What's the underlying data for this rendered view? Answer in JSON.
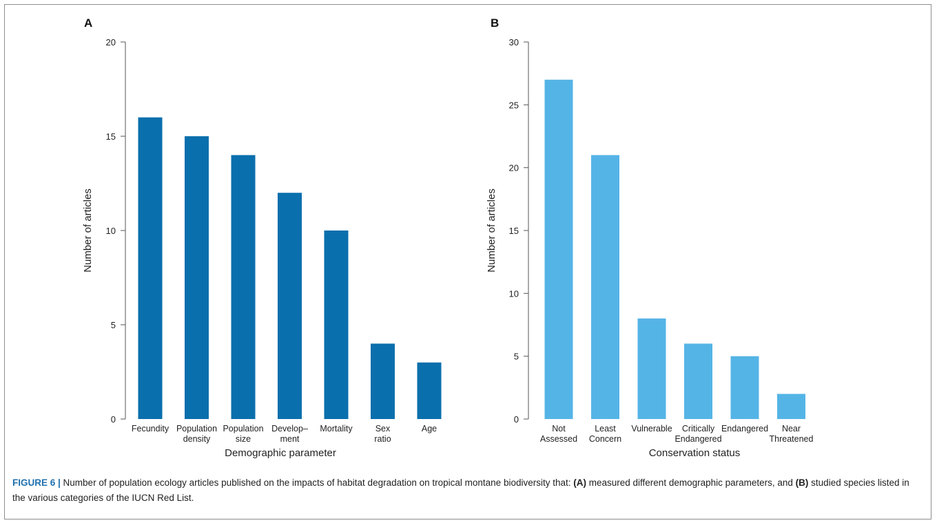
{
  "figure": {
    "caption_label": "FIGURE 6 |",
    "caption_part1": " Number of population ecology articles published on the impacts of habitat degradation on tropical montane biodiversity that: ",
    "caption_a": "(A)",
    "caption_part2": " measured different demographic parameters, and ",
    "caption_b": "(B)",
    "caption_part3": " studied species listed in the various categories of the IUCN Red List."
  },
  "chart_data": [
    {
      "panel": "A",
      "type": "bar",
      "color": "#0a6fad",
      "categories": [
        [
          "Fecundity"
        ],
        [
          "Population",
          "density"
        ],
        [
          "Population",
          "size"
        ],
        [
          "Develop–",
          "ment"
        ],
        [
          "Mortality"
        ],
        [
          "Sex",
          "ratio"
        ],
        [
          "Age"
        ]
      ],
      "values": [
        16,
        15,
        14,
        12,
        10,
        4,
        3
      ],
      "xlabel": "Demographic parameter",
      "ylabel": "Number of articles",
      "ylim": [
        0,
        20
      ],
      "yticks": [
        0,
        5,
        10,
        15,
        20
      ],
      "grid": false
    },
    {
      "panel": "B",
      "type": "bar",
      "color": "#55b4e6",
      "categories": [
        [
          "Not",
          "Assessed"
        ],
        [
          "Least",
          "Concern"
        ],
        [
          "Vulnerable"
        ],
        [
          "Critically",
          "Endangered"
        ],
        [
          "Endangered"
        ],
        [
          "Near",
          "Threatened"
        ]
      ],
      "values": [
        27,
        21,
        8,
        6,
        5,
        2
      ],
      "xlabel": "Conservation status",
      "ylabel": "Number of articles",
      "ylim": [
        0,
        30
      ],
      "yticks": [
        0,
        5,
        10,
        15,
        20,
        25,
        30
      ],
      "grid": false
    }
  ]
}
